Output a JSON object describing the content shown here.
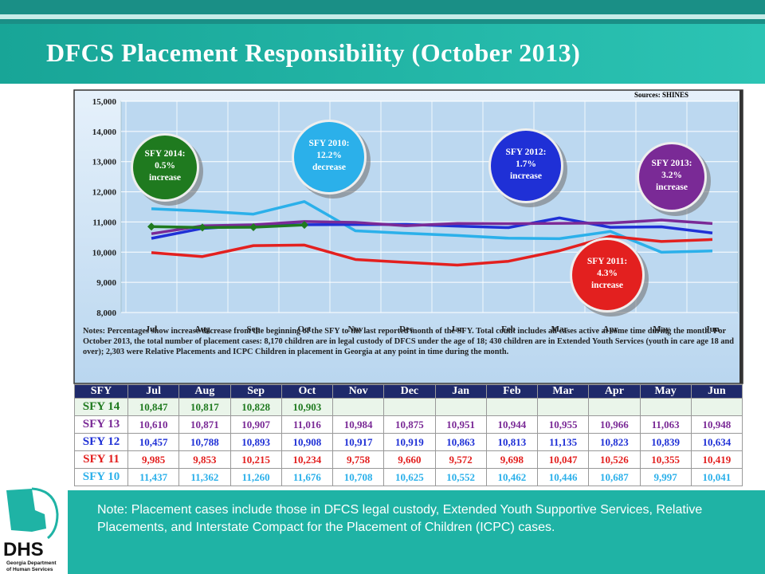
{
  "title": "DFCS Placement Responsibility (October 2013)",
  "chart_data": {
    "type": "line",
    "source": "Sources: SHINES",
    "categories": [
      "Jul",
      "Aug",
      "Sep",
      "Oct",
      "Nov",
      "Dec",
      "Jan",
      "Feb",
      "Mar",
      "Apr",
      "May",
      "Jun"
    ],
    "ylim": [
      8000,
      15000
    ],
    "yticks": [
      {
        "value": 8000,
        "label": "8,000"
      },
      {
        "value": 9000,
        "label": "9,000"
      },
      {
        "value": 10000,
        "label": "10,000"
      },
      {
        "value": 11000,
        "label": "11,000"
      },
      {
        "value": 12000,
        "label": "12,000"
      },
      {
        "value": 13000,
        "label": "13,000"
      },
      {
        "value": 14000,
        "label": "14,000"
      },
      {
        "value": 15000,
        "label": "15,000"
      }
    ],
    "grid": true,
    "series": [
      {
        "name": "SFY 14",
        "color": "#1f7a1f",
        "marker": "diamond",
        "values": [
          10847,
          10817,
          10828,
          10903,
          null,
          null,
          null,
          null,
          null,
          null,
          null,
          null
        ],
        "value_labels": [
          "10,847",
          "10,817",
          "10,828",
          "10,903",
          null,
          null,
          null,
          null,
          null,
          null,
          null,
          null
        ]
      },
      {
        "name": "SFY 13",
        "color": "#7a2a96",
        "values": [
          10610,
          10871,
          10907,
          11016,
          10984,
          10875,
          10951,
          10944,
          10955,
          10966,
          11063,
          10948
        ],
        "value_labels": [
          "10,610",
          "10,871",
          "10,907",
          "11,016",
          "10,984",
          "10,875",
          "10,951",
          "10,944",
          "10,955",
          "10,966",
          "11,063",
          "10,948"
        ]
      },
      {
        "name": "SFY 12",
        "color": "#1f30d6",
        "values": [
          10457,
          10788,
          10893,
          10908,
          10917,
          10919,
          10863,
          10813,
          11135,
          10823,
          10839,
          10634
        ],
        "value_labels": [
          "10,457",
          "10,788",
          "10,893",
          "10,908",
          "10,917",
          "10,919",
          "10,863",
          "10,813",
          "11,135",
          "10,823",
          "10,839",
          "10,634"
        ]
      },
      {
        "name": "SFY 11",
        "color": "#e3201f",
        "values": [
          9985,
          9853,
          10215,
          10234,
          9758,
          9660,
          9572,
          9698,
          10047,
          10526,
          10355,
          10419
        ],
        "value_labels": [
          "9,985",
          "9,853",
          "10,215",
          "10,234",
          "9,758",
          "9,660",
          "9,572",
          "9,698",
          "10,047",
          "10,526",
          "10,355",
          "10,419"
        ]
      },
      {
        "name": "SFY 10",
        "color": "#2bb0ea",
        "values": [
          11437,
          11362,
          11260,
          11676,
          10708,
          10625,
          10552,
          10462,
          10446,
          10687,
          9997,
          10041
        ],
        "value_labels": [
          "11,437",
          "11,362",
          "11,260",
          "11,676",
          "10,708",
          "10,625",
          "10,552",
          "10,462",
          "10,446",
          "10,687",
          "9,997",
          "10,041"
        ]
      }
    ],
    "annotations": [
      {
        "lines": [
          "SFY 2014:",
          "0.5%",
          "increase"
        ],
        "color": "#1f7a1f"
      },
      {
        "lines": [
          "SFY 2010:",
          "12.2%",
          "decrease"
        ],
        "color": "#2bb0ea"
      },
      {
        "lines": [
          "SFY 2012:",
          "1.7%",
          "increase"
        ],
        "color": "#1f30d6"
      },
      {
        "lines": [
          "SFY 2013:",
          "3.2%",
          "increase"
        ],
        "color": "#7a2a96"
      },
      {
        "lines": [
          "SFY 2011:",
          "4.3%",
          "increase"
        ],
        "color": "#e3201f"
      }
    ],
    "notes": "Notes: Percentages show increase/decrease from the beginning of the SFY to the last reported month of the SFY.  Total count includes all cases active at some time during the month.  For October 2013, the total number of placement cases: 8,170 children are in legal custody of DFCS under the age of 18;  430 children are in Extended Youth Services (youth in care age 18 and over);  2,303 were Relative Placements and ICPC Children in placement in Georgia at any point in time during the month."
  },
  "table": {
    "header_label": "SFY"
  },
  "footer": {
    "note": "Note:  Placement cases include those in DFCS legal custody, Extended Youth Supportive Services, Relative Placements, and Interstate Compact for the Placement of Children (ICPC) cases.",
    "logo": "DHS",
    "logo_sub": [
      "Georgia Department",
      "of Human Services"
    ]
  }
}
